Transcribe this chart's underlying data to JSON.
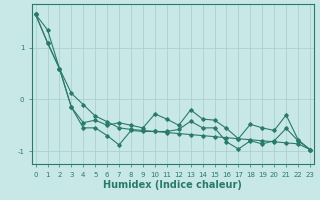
{
  "xlabel": "Humidex (Indice chaleur)",
  "background_color": "#c8e8e8",
  "grid_color": "#a8ccc8",
  "line_color": "#2a7a6a",
  "x": [
    0,
    1,
    2,
    3,
    4,
    5,
    6,
    7,
    8,
    9,
    10,
    11,
    12,
    13,
    14,
    15,
    16,
    17,
    18,
    19,
    20,
    21,
    22,
    23
  ],
  "y_straight": [
    1.65,
    1.35,
    0.6,
    0.12,
    -0.1,
    -0.32,
    -0.43,
    -0.55,
    -0.58,
    -0.6,
    -0.62,
    -0.64,
    -0.66,
    -0.68,
    -0.7,
    -0.72,
    -0.74,
    -0.76,
    -0.78,
    -0.8,
    -0.82,
    -0.84,
    -0.86,
    -0.97
  ],
  "y_upper": [
    1.65,
    1.1,
    0.6,
    -0.15,
    -0.45,
    -0.4,
    -0.5,
    -0.45,
    -0.5,
    -0.55,
    -0.28,
    -0.38,
    -0.5,
    -0.2,
    -0.38,
    -0.4,
    -0.56,
    -0.76,
    -0.48,
    -0.55,
    -0.6,
    -0.3,
    -0.78,
    -0.97
  ],
  "y_lower": [
    1.65,
    1.1,
    0.6,
    -0.15,
    -0.55,
    -0.55,
    -0.7,
    -0.88,
    -0.6,
    -0.62,
    -0.62,
    -0.62,
    -0.58,
    -0.42,
    -0.55,
    -0.55,
    -0.82,
    -0.96,
    -0.8,
    -0.86,
    -0.8,
    -0.56,
    -0.8,
    -0.97
  ],
  "ylim": [
    -1.25,
    1.85
  ],
  "yticks": [
    -1,
    0,
    1
  ],
  "xlim": [
    -0.3,
    23.3
  ]
}
